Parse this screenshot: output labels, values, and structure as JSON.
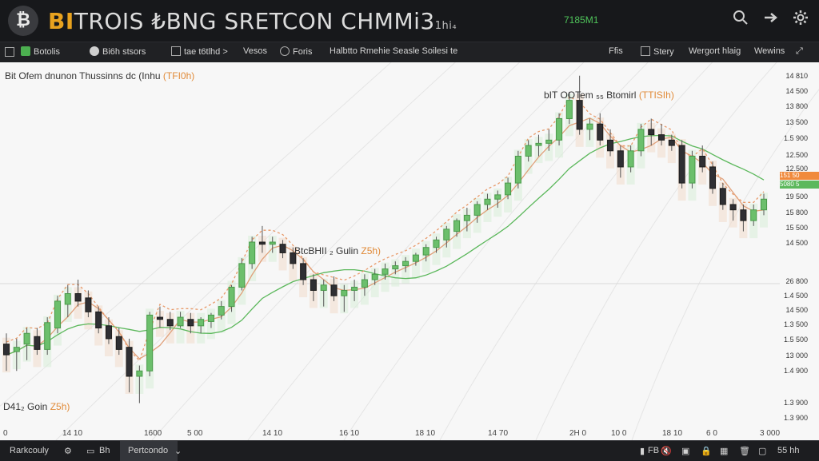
{
  "header": {
    "logo_glyph": "₿",
    "title_brand": "BI",
    "title_rest": "TROIS ₺BNG SRETCON CHMMi3",
    "title_small": "1hi₄",
    "price": "7185M1"
  },
  "toolbar": {
    "items": [
      "Botolis",
      "Bi6h stsors",
      "tae t6tlhd >",
      "Vesos",
      "Foris",
      "Halbtto Rmehie Seasle Soilesi te",
      "Ffis",
      "Stery",
      "Wergort hlaig",
      "Wewins"
    ],
    "item_icons": [
      "coin-icon",
      "wallet-icon",
      "chart-icon",
      "",
      "gear-icon",
      "",
      "",
      "layers-icon",
      "",
      "",
      "expand-icon"
    ]
  },
  "chart": {
    "title": "Bit Ofem dnunon Thussinns dc (Inhu",
    "title_accent": "(TFI0h)",
    "annotation_top": "bIT OOTem ₅₅ Btomirl",
    "annotation_top_accent": "(TTISIh)",
    "annotation_mid": "BtcBHII ₂ Gulin",
    "annotation_mid_accent": "Z5h)",
    "annotation_bottom": "D41₂ Goin",
    "annotation_bottom_accent": "Z5h)",
    "price_tags": [
      "151 50",
      "5080 5"
    ],
    "y_ticks": [
      "14 810",
      "14 500",
      "13 800",
      "13 500",
      "1.5 900",
      "12.500",
      "12.500",
      "19 500",
      "15 800",
      "15 500",
      "14 500",
      "26 800",
      "1.4 500",
      "14 500",
      "1.3 500",
      "1.5 500",
      "13 000",
      "1.4 900",
      "1.3 900",
      "1.3 900"
    ],
    "x_ticks": [
      "0",
      "14 10",
      "1600",
      "5 00",
      "14 10",
      "16 10",
      "18 10",
      "14 70",
      "2H 0",
      "10 0",
      "18 10",
      "6 0",
      "3 000"
    ]
  },
  "chart_data": {
    "type": "candlestick",
    "candles": [
      {
        "o": 13.45,
        "h": 13.55,
        "l": 13.2,
        "c": 13.35
      },
      {
        "o": 13.38,
        "h": 13.5,
        "l": 13.2,
        "c": 13.42
      },
      {
        "o": 13.45,
        "h": 13.6,
        "l": 13.3,
        "c": 13.55
      },
      {
        "o": 13.52,
        "h": 13.6,
        "l": 13.35,
        "c": 13.4
      },
      {
        "o": 13.4,
        "h": 13.7,
        "l": 13.35,
        "c": 13.65
      },
      {
        "o": 13.6,
        "h": 13.9,
        "l": 13.55,
        "c": 13.85
      },
      {
        "o": 13.82,
        "h": 14.0,
        "l": 13.7,
        "c": 13.92
      },
      {
        "o": 13.92,
        "h": 14.05,
        "l": 13.8,
        "c": 13.85
      },
      {
        "o": 13.88,
        "h": 13.95,
        "l": 13.7,
        "c": 13.75
      },
      {
        "o": 13.75,
        "h": 13.8,
        "l": 13.55,
        "c": 13.6
      },
      {
        "o": 13.62,
        "h": 13.7,
        "l": 13.45,
        "c": 13.5
      },
      {
        "o": 13.52,
        "h": 13.6,
        "l": 13.35,
        "c": 13.4
      },
      {
        "o": 13.42,
        "h": 13.5,
        "l": 13.0,
        "c": 13.15
      },
      {
        "o": 13.15,
        "h": 13.25,
        "l": 12.9,
        "c": 13.2
      },
      {
        "o": 13.2,
        "h": 13.75,
        "l": 13.15,
        "c": 13.72
      },
      {
        "o": 13.7,
        "h": 13.8,
        "l": 13.6,
        "c": 13.68
      },
      {
        "o": 13.68,
        "h": 13.75,
        "l": 13.58,
        "c": 13.62
      },
      {
        "o": 13.62,
        "h": 13.75,
        "l": 13.6,
        "c": 13.7
      },
      {
        "o": 13.68,
        "h": 13.74,
        "l": 13.55,
        "c": 13.62
      },
      {
        "o": 13.62,
        "h": 13.7,
        "l": 13.55,
        "c": 13.68
      },
      {
        "o": 13.66,
        "h": 13.74,
        "l": 13.6,
        "c": 13.72
      },
      {
        "o": 13.72,
        "h": 13.85,
        "l": 13.68,
        "c": 13.8
      },
      {
        "o": 13.8,
        "h": 14.0,
        "l": 13.75,
        "c": 13.98
      },
      {
        "o": 13.98,
        "h": 14.25,
        "l": 13.95,
        "c": 14.2
      },
      {
        "o": 14.2,
        "h": 14.45,
        "l": 14.15,
        "c": 14.4
      },
      {
        "o": 14.4,
        "h": 14.55,
        "l": 14.3,
        "c": 14.38
      },
      {
        "o": 14.38,
        "h": 14.45,
        "l": 14.3,
        "c": 14.4
      },
      {
        "o": 14.38,
        "h": 14.42,
        "l": 14.25,
        "c": 14.3
      },
      {
        "o": 14.3,
        "h": 14.35,
        "l": 14.15,
        "c": 14.2
      },
      {
        "o": 14.2,
        "h": 14.25,
        "l": 14.0,
        "c": 14.05
      },
      {
        "o": 14.05,
        "h": 14.1,
        "l": 13.85,
        "c": 13.95
      },
      {
        "o": 13.95,
        "h": 14.05,
        "l": 13.8,
        "c": 14.0
      },
      {
        "o": 14.0,
        "h": 14.08,
        "l": 13.85,
        "c": 13.9
      },
      {
        "o": 13.9,
        "h": 14.0,
        "l": 13.75,
        "c": 13.95
      },
      {
        "o": 13.95,
        "h": 14.05,
        "l": 13.85,
        "c": 13.98
      },
      {
        "o": 13.98,
        "h": 14.1,
        "l": 13.9,
        "c": 14.05
      },
      {
        "o": 14.05,
        "h": 14.15,
        "l": 14.0,
        "c": 14.1
      },
      {
        "o": 14.1,
        "h": 14.2,
        "l": 14.05,
        "c": 14.15
      },
      {
        "o": 14.15,
        "h": 14.22,
        "l": 14.1,
        "c": 14.18
      },
      {
        "o": 14.18,
        "h": 14.26,
        "l": 14.12,
        "c": 14.22
      },
      {
        "o": 14.22,
        "h": 14.3,
        "l": 14.18,
        "c": 14.28
      },
      {
        "o": 14.28,
        "h": 14.38,
        "l": 14.22,
        "c": 14.35
      },
      {
        "o": 14.35,
        "h": 14.45,
        "l": 14.3,
        "c": 14.42
      },
      {
        "o": 14.42,
        "h": 14.55,
        "l": 14.35,
        "c": 14.52
      },
      {
        "o": 14.5,
        "h": 14.62,
        "l": 14.45,
        "c": 14.6
      },
      {
        "o": 14.6,
        "h": 14.72,
        "l": 14.5,
        "c": 14.65
      },
      {
        "o": 14.65,
        "h": 14.78,
        "l": 14.58,
        "c": 14.75
      },
      {
        "o": 14.75,
        "h": 14.85,
        "l": 14.7,
        "c": 14.8
      },
      {
        "o": 14.8,
        "h": 14.88,
        "l": 14.72,
        "c": 14.84
      },
      {
        "o": 14.84,
        "h": 15.0,
        "l": 14.8,
        "c": 14.95
      },
      {
        "o": 14.95,
        "h": 15.25,
        "l": 14.9,
        "c": 15.2
      },
      {
        "o": 15.2,
        "h": 15.35,
        "l": 15.15,
        "c": 15.3
      },
      {
        "o": 15.3,
        "h": 15.4,
        "l": 15.2,
        "c": 15.32
      },
      {
        "o": 15.32,
        "h": 15.45,
        "l": 15.25,
        "c": 15.35
      },
      {
        "o": 15.35,
        "h": 15.6,
        "l": 15.3,
        "c": 15.55
      },
      {
        "o": 15.55,
        "h": 15.8,
        "l": 15.5,
        "c": 15.72
      },
      {
        "o": 15.72,
        "h": 15.95,
        "l": 15.4,
        "c": 15.45
      },
      {
        "o": 15.45,
        "h": 15.55,
        "l": 15.35,
        "c": 15.5
      },
      {
        "o": 15.5,
        "h": 15.6,
        "l": 15.3,
        "c": 15.35
      },
      {
        "o": 15.35,
        "h": 15.45,
        "l": 15.2,
        "c": 15.25
      },
      {
        "o": 15.25,
        "h": 15.3,
        "l": 15.0,
        "c": 15.1
      },
      {
        "o": 15.1,
        "h": 15.3,
        "l": 15.05,
        "c": 15.25
      },
      {
        "o": 15.25,
        "h": 15.5,
        "l": 15.2,
        "c": 15.45
      },
      {
        "o": 15.45,
        "h": 15.55,
        "l": 15.3,
        "c": 15.4
      },
      {
        "o": 15.4,
        "h": 15.5,
        "l": 15.3,
        "c": 15.35
      },
      {
        "o": 15.35,
        "h": 15.4,
        "l": 15.25,
        "c": 15.3
      },
      {
        "o": 15.3,
        "h": 15.35,
        "l": 14.9,
        "c": 14.95
      },
      {
        "o": 14.95,
        "h": 15.25,
        "l": 14.9,
        "c": 15.2
      },
      {
        "o": 15.2,
        "h": 15.3,
        "l": 15.05,
        "c": 15.1
      },
      {
        "o": 15.1,
        "h": 15.15,
        "l": 14.85,
        "c": 14.9
      },
      {
        "o": 14.9,
        "h": 14.95,
        "l": 14.7,
        "c": 14.75
      },
      {
        "o": 14.75,
        "h": 14.8,
        "l": 14.6,
        "c": 14.7
      },
      {
        "o": 14.7,
        "h": 14.75,
        "l": 14.5,
        "c": 14.6
      },
      {
        "o": 14.6,
        "h": 14.75,
        "l": 14.55,
        "c": 14.7
      },
      {
        "o": 14.7,
        "h": 14.85,
        "l": 14.65,
        "c": 14.8
      }
    ],
    "ma_fast_color": "#e0a07a",
    "ma_slow_color": "#5cb85c"
  },
  "footer": {
    "items": [
      "Rarkcouly",
      "Bh",
      "Pertcondo",
      "FB",
      "55 hh"
    ],
    "icons": [
      "gear-icon",
      "panel-icon",
      "chevron-down-icon",
      "bar-icon",
      "mute-icon",
      "camera-icon",
      "lock-icon",
      "grid-icon",
      "trash-icon",
      "screen-icon"
    ]
  }
}
